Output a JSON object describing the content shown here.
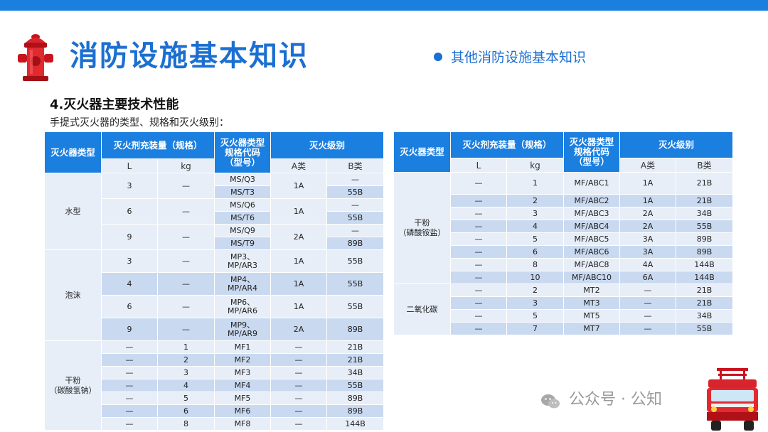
{
  "header": {
    "title": "消防设施基本知识",
    "subtitle": "其他消防设施基本知识"
  },
  "section": {
    "title": "4.灭火器主要技术性能",
    "description": "手提式灭火器的类型、规格和灭火级别："
  },
  "table_headers": {
    "type": "灭火器类型",
    "capacity": "灭火剂充装量（规格）",
    "code_line1": "灭火器类型",
    "code_line2": "规格代码",
    "code_line3": "（型号）",
    "level": "灭火级别",
    "l": "L",
    "kg": "kg",
    "a": "A类",
    "b": "B类"
  },
  "left_table": {
    "water_type": "水型",
    "water": [
      {
        "l": "3",
        "kg": "—",
        "codes": [
          "MS/Q3",
          "MS/T3"
        ],
        "a": "1A",
        "b": [
          "—",
          "55B"
        ]
      },
      {
        "l": "6",
        "kg": "—",
        "codes": [
          "MS/Q6",
          "MS/T6"
        ],
        "a": "1A",
        "b": [
          "—",
          "55B"
        ]
      },
      {
        "l": "9",
        "kg": "—",
        "codes": [
          "MS/Q9",
          "MS/T9"
        ],
        "a": "2A",
        "b": [
          "—",
          "89B"
        ]
      }
    ],
    "foam_type": "泡沫",
    "foam": [
      {
        "l": "3",
        "kg": "—",
        "code1": "MP3、",
        "code2": "MP/AR3",
        "a": "1A",
        "b": "55B"
      },
      {
        "l": "4",
        "kg": "—",
        "code1": "MP4、",
        "code2": "MP/AR4",
        "a": "1A",
        "b": "55B"
      },
      {
        "l": "6",
        "kg": "—",
        "code1": "MP6、",
        "code2": "MP/AR6",
        "a": "1A",
        "b": "55B"
      },
      {
        "l": "9",
        "kg": "—",
        "code1": "MP9、",
        "code2": "MP/AR9",
        "a": "2A",
        "b": "89B"
      }
    ],
    "powder_type_line1": "干粉",
    "powder_type_line2": "（碳酸氢钠）",
    "powder": [
      {
        "l": "—",
        "kg": "1",
        "code": "MF1",
        "a": "—",
        "b": "21B"
      },
      {
        "l": "—",
        "kg": "2",
        "code": "MF2",
        "a": "—",
        "b": "21B"
      },
      {
        "l": "—",
        "kg": "3",
        "code": "MF3",
        "a": "—",
        "b": "34B"
      },
      {
        "l": "—",
        "kg": "4",
        "code": "MF4",
        "a": "—",
        "b": "55B"
      },
      {
        "l": "—",
        "kg": "5",
        "code": "MF5",
        "a": "—",
        "b": "89B"
      },
      {
        "l": "—",
        "kg": "6",
        "code": "MF6",
        "a": "—",
        "b": "89B"
      },
      {
        "l": "—",
        "kg": "8",
        "code": "MF8",
        "a": "—",
        "b": "144B"
      }
    ]
  },
  "right_table": {
    "powder_type_line1": "干粉",
    "powder_type_line2": "（磷酸铵盐）",
    "powder": [
      {
        "l": "—",
        "kg": "1",
        "code": "MF/ABC1",
        "a": "1A",
        "b": "21B"
      },
      {
        "l": "—",
        "kg": "2",
        "code": "MF/ABC2",
        "a": "1A",
        "b": "21B"
      },
      {
        "l": "—",
        "kg": "3",
        "code": "MF/ABC3",
        "a": "2A",
        "b": "34B"
      },
      {
        "l": "—",
        "kg": "4",
        "code": "MF/ABC4",
        "a": "2A",
        "b": "55B"
      },
      {
        "l": "—",
        "kg": "5",
        "code": "MF/ABC5",
        "a": "3A",
        "b": "89B"
      },
      {
        "l": "—",
        "kg": "6",
        "code": "MF/ABC6",
        "a": "3A",
        "b": "89B"
      },
      {
        "l": "—",
        "kg": "8",
        "code": "MF/ABC8",
        "a": "4A",
        "b": "144B"
      },
      {
        "l": "—",
        "kg": "10",
        "code": "MF/ABC10",
        "a": "6A",
        "b": "144B"
      }
    ],
    "co2_type": "二氧化碳",
    "co2": [
      {
        "l": "—",
        "kg": "2",
        "code": "MT2",
        "a": "—",
        "b": "21B"
      },
      {
        "l": "—",
        "kg": "3",
        "code": "MT3",
        "a": "—",
        "b": "21B"
      },
      {
        "l": "—",
        "kg": "5",
        "code": "MT5",
        "a": "—",
        "b": "34B"
      },
      {
        "l": "—",
        "kg": "7",
        "code": "MT7",
        "a": "—",
        "b": "55B"
      }
    ]
  },
  "watermark": "公众号 · 公知"
}
